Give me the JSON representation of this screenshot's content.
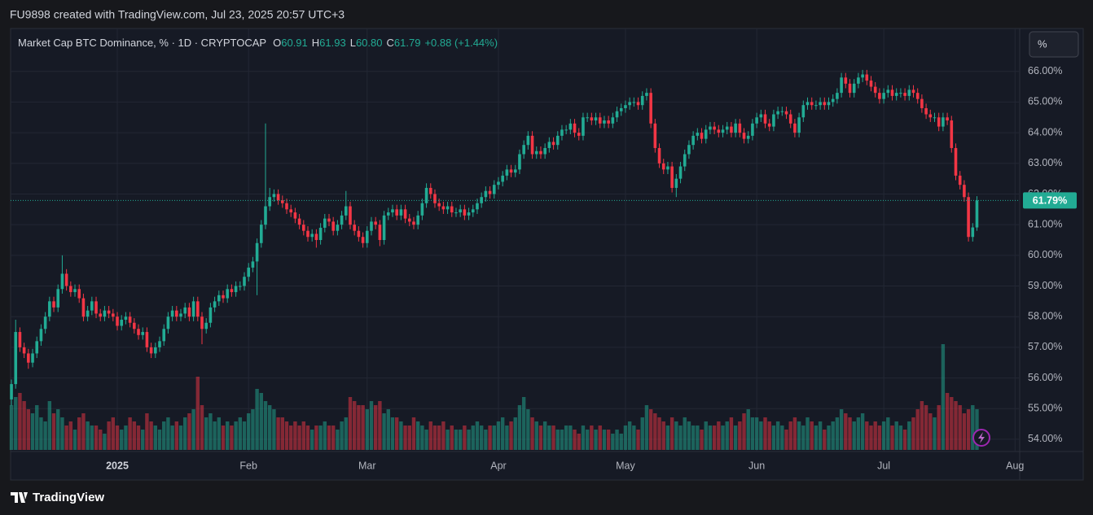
{
  "header": {
    "text": "FU9898 created with TradingView.com, Jul 23, 2025 20:57 UTC+3"
  },
  "chart_data": {
    "type": "candlestick",
    "title": "Market Cap BTC Dominance, % · 1D · CRYPTOCAP",
    "legend": [
      {
        "key": "O",
        "text": "60.91"
      },
      {
        "key": "H",
        "text": "61.93"
      },
      {
        "key": "L",
        "text": "60.80"
      },
      {
        "key": "C",
        "text": "61.79"
      }
    ],
    "change": "+0.88 (+1.44%)",
    "scale_button": "%",
    "last_price_label": "61.79%",
    "up_color": "#22ab94",
    "down_color": "#f23645",
    "grid": true,
    "xlim": [
      -25.2,
      213.1
    ],
    "xticks": [
      {
        "value": 0,
        "label": "2025"
      },
      {
        "value": 31,
        "label": "Feb"
      },
      {
        "value": 59,
        "label": "Mar"
      },
      {
        "value": 90,
        "label": "Apr"
      },
      {
        "value": 120,
        "label": "May"
      },
      {
        "value": 151,
        "label": "Jun"
      },
      {
        "value": 181,
        "label": "Jul"
      },
      {
        "value": 212,
        "label": "Aug"
      }
    ],
    "ylim": [
      53.6,
      67.4
    ],
    "yticks": [
      {
        "value": 54,
        "label": "54.00%"
      },
      {
        "value": 55,
        "label": "55.00%"
      },
      {
        "value": 56,
        "label": "56.00%"
      },
      {
        "value": 57,
        "label": "57.00%"
      },
      {
        "value": 58,
        "label": "58.00%"
      },
      {
        "value": 59,
        "label": "59.00%"
      },
      {
        "value": 60,
        "label": "60.00%"
      },
      {
        "value": 61,
        "label": "61.00%"
      },
      {
        "value": 62,
        "label": "62.00%"
      },
      {
        "value": 63,
        "label": "63.00%"
      },
      {
        "value": 64,
        "label": "64.00%"
      },
      {
        "value": 65,
        "label": "65.00%"
      },
      {
        "value": 66,
        "label": "66.00%"
      }
    ],
    "x": [
      -25,
      -24,
      -23,
      -22,
      -21,
      -20,
      -19,
      -18,
      -17,
      -16,
      -15,
      -14,
      -13,
      -12,
      -11,
      -10,
      -9,
      -8,
      -7,
      -6,
      -5,
      -4,
      -3,
      -2,
      -1,
      0,
      1,
      2,
      3,
      4,
      5,
      6,
      7,
      8,
      9,
      10,
      11,
      12,
      13,
      14,
      15,
      16,
      17,
      18,
      19,
      20,
      21,
      22,
      23,
      24,
      25,
      26,
      27,
      28,
      29,
      30,
      31,
      32,
      33,
      34,
      35,
      36,
      37,
      38,
      39,
      40,
      41,
      42,
      43,
      44,
      45,
      46,
      47,
      48,
      49,
      50,
      51,
      52,
      53,
      54,
      55,
      56,
      57,
      58,
      59,
      60,
      61,
      62,
      63,
      64,
      65,
      66,
      67,
      68,
      69,
      70,
      71,
      72,
      73,
      74,
      75,
      76,
      77,
      78,
      79,
      80,
      81,
      82,
      83,
      84,
      85,
      86,
      87,
      88,
      89,
      90,
      91,
      92,
      93,
      94,
      95,
      96,
      97,
      98,
      99,
      100,
      101,
      102,
      103,
      104,
      105,
      106,
      107,
      108,
      109,
      110,
      111,
      112,
      113,
      114,
      115,
      116,
      117,
      118,
      119,
      120,
      121,
      122,
      123,
      124,
      125,
      126,
      127,
      128,
      129,
      130,
      131,
      132,
      133,
      134,
      135,
      136,
      137,
      138,
      139,
      140,
      141,
      142,
      143,
      144,
      145,
      146,
      147,
      148,
      149,
      150,
      151,
      152,
      153,
      154,
      155,
      156,
      157,
      158,
      159,
      160,
      161,
      162,
      163,
      164,
      165,
      166,
      167,
      168,
      169,
      170,
      171,
      172,
      173,
      174,
      175,
      176,
      177,
      178,
      179,
      180,
      181,
      182,
      183,
      184,
      185,
      186,
      187,
      188,
      189,
      190,
      191,
      192,
      193,
      194,
      195,
      196,
      197,
      198,
      199,
      200,
      201,
      202,
      203
    ],
    "open": [
      55.3,
      55.8,
      57.5,
      57.0,
      56.8,
      56.5,
      56.8,
      57.2,
      57.6,
      58.0,
      58.5,
      58.3,
      58.9,
      59.4,
      59.0,
      58.8,
      58.9,
      58.6,
      58.0,
      58.2,
      58.5,
      58.1,
      58.0,
      58.2,
      58.1,
      58.0,
      57.7,
      57.9,
      58.0,
      57.8,
      57.6,
      57.4,
      57.5,
      57.0,
      56.8,
      57.0,
      57.2,
      57.6,
      58.0,
      58.2,
      58.0,
      58.1,
      58.3,
      58.0,
      58.5,
      58.0,
      57.6,
      57.8,
      58.3,
      58.5,
      58.7,
      58.6,
      58.9,
      58.8,
      59.0,
      59.0,
      59.3,
      59.6,
      59.8,
      60.4,
      61.0,
      61.6,
      61.9,
      62.0,
      61.8,
      61.7,
      61.5,
      61.4,
      61.2,
      61.0,
      60.8,
      60.6,
      60.7,
      60.5,
      60.9,
      61.2,
      61.1,
      60.8,
      61.0,
      61.3,
      61.6,
      61.0,
      60.8,
      60.6,
      60.4,
      60.8,
      61.1,
      61.0,
      60.5,
      61.3,
      61.4,
      61.5,
      61.3,
      61.5,
      61.2,
      61.1,
      61.0,
      61.3,
      61.7,
      62.2,
      62.0,
      61.7,
      61.6,
      61.5,
      61.6,
      61.4,
      61.4,
      61.5,
      61.3,
      61.4,
      61.5,
      61.7,
      61.9,
      62.1,
      62.0,
      62.3,
      62.4,
      62.6,
      62.8,
      62.7,
      62.8,
      63.3,
      63.6,
      63.9,
      63.3,
      63.4,
      63.3,
      63.5,
      63.7,
      63.6,
      63.9,
      64.1,
      64.1,
      64.3,
      64.0,
      63.9,
      64.5,
      64.5,
      64.4,
      64.5,
      64.3,
      64.4,
      64.3,
      64.5,
      64.7,
      64.8,
      64.9,
      65.0,
      65.0,
      64.9,
      65.2,
      65.3,
      64.3,
      63.5,
      63.0,
      62.8,
      62.9,
      62.2,
      62.5,
      62.9,
      63.3,
      63.6,
      63.9,
      64.0,
      63.8,
      64.1,
      64.2,
      64.1,
      64.0,
      64.1,
      64.2,
      64.0,
      64.3,
      64.0,
      63.8,
      63.9,
      64.3,
      64.5,
      64.6,
      64.3,
      64.2,
      64.6,
      64.7,
      64.7,
      64.6,
      64.3,
      64.0,
      64.5,
      64.9,
      65.0,
      64.9,
      64.9,
      65.0,
      64.9,
      65.0,
      65.1,
      65.3,
      65.8,
      65.6,
      65.3,
      65.6,
      65.8,
      65.9,
      65.7,
      65.5,
      65.3,
      65.1,
      65.3,
      65.4,
      65.2,
      65.3,
      65.3,
      65.2,
      65.4,
      65.3,
      65.1,
      64.8,
      64.6,
      64.5,
      64.5,
      64.2,
      64.5,
      64.4,
      63.5,
      62.6,
      62.3,
      61.9,
      60.6,
      60.91
    ],
    "high": [
      55.95,
      57.9,
      57.65,
      57.15,
      56.95,
      56.95,
      57.35,
      57.75,
      58.15,
      58.65,
      58.65,
      59.05,
      60.0,
      59.55,
      59.15,
      59.05,
      59.05,
      58.75,
      58.35,
      58.65,
      58.65,
      58.25,
      58.35,
      58.35,
      58.25,
      58.15,
      58.05,
      58.15,
      58.15,
      57.95,
      57.75,
      57.65,
      57.65,
      57.15,
      57.15,
      57.35,
      57.75,
      58.15,
      58.35,
      58.35,
      58.25,
      58.45,
      58.45,
      58.65,
      58.65,
      58.15,
      57.95,
      58.45,
      58.65,
      58.85,
      58.85,
      59.05,
      59.05,
      59.15,
      59.15,
      59.45,
      59.75,
      59.95,
      60.55,
      61.15,
      64.3,
      62.2,
      62.15,
      62.15,
      61.95,
      61.85,
      61.65,
      61.55,
      61.35,
      61.15,
      60.95,
      60.85,
      60.85,
      61.05,
      61.35,
      61.35,
      61.25,
      61.15,
      61.45,
      62.1,
      61.75,
      61.15,
      60.95,
      60.75,
      60.95,
      61.25,
      61.25,
      61.15,
      61.45,
      61.55,
      61.65,
      61.65,
      61.65,
      61.65,
      61.35,
      61.25,
      61.45,
      61.85,
      62.35,
      62.35,
      62.15,
      61.85,
      61.75,
      61.75,
      61.75,
      61.55,
      61.65,
      61.65,
      61.55,
      61.65,
      61.85,
      62.05,
      62.25,
      62.25,
      62.45,
      62.55,
      62.75,
      62.95,
      62.95,
      62.95,
      63.45,
      63.75,
      64.05,
      64.05,
      63.55,
      63.55,
      63.65,
      63.85,
      63.85,
      64.05,
      64.25,
      64.25,
      64.45,
      64.45,
      64.15,
      64.65,
      64.65,
      64.65,
      64.65,
      64.65,
      64.55,
      64.55,
      64.65,
      64.85,
      64.95,
      65.05,
      65.15,
      65.15,
      65.15,
      65.35,
      65.45,
      65.45,
      64.45,
      63.65,
      63.15,
      63.05,
      63.05,
      62.65,
      63.05,
      63.45,
      63.75,
      64.05,
      64.15,
      64.15,
      64.25,
      64.35,
      64.35,
      64.25,
      64.25,
      64.35,
      64.35,
      64.45,
      64.45,
      64.15,
      64.05,
      64.45,
      64.65,
      64.75,
      64.75,
      64.45,
      64.75,
      64.85,
      64.85,
      64.85,
      64.75,
      64.45,
      64.65,
      65.05,
      65.15,
      65.15,
      65.05,
      65.15,
      65.15,
      65.15,
      65.25,
      65.45,
      65.95,
      65.95,
      65.75,
      65.75,
      65.95,
      66.05,
      66.05,
      65.85,
      65.65,
      65.45,
      65.45,
      65.55,
      65.55,
      65.45,
      65.45,
      65.45,
      65.55,
      65.55,
      65.45,
      65.25,
      64.95,
      64.75,
      64.65,
      64.65,
      64.65,
      64.65,
      64.55,
      63.65,
      62.75,
      62.45,
      62.05,
      61.05,
      61.93
    ],
    "low": [
      55.1,
      55.65,
      56.85,
      56.65,
      56.3,
      56.35,
      56.65,
      57.05,
      57.45,
      57.85,
      58.15,
      58.15,
      58.75,
      58.85,
      58.65,
      58.65,
      58.45,
      57.85,
      57.85,
      58.05,
      57.95,
      57.85,
      57.85,
      57.95,
      57.85,
      57.55,
      57.55,
      57.75,
      57.65,
      57.45,
      57.25,
      57.25,
      56.85,
      56.65,
      56.65,
      56.85,
      57.05,
      57.45,
      57.85,
      57.85,
      57.85,
      57.95,
      57.85,
      57.85,
      57.85,
      57.1,
      57.45,
      57.65,
      58.15,
      58.35,
      58.45,
      58.45,
      58.65,
      58.65,
      58.85,
      58.85,
      59.15,
      59.45,
      58.7,
      60.25,
      60.85,
      61.45,
      61.75,
      61.65,
      61.55,
      61.35,
      61.25,
      61.05,
      60.85,
      60.65,
      60.45,
      60.45,
      60.25,
      60.35,
      60.75,
      60.95,
      60.65,
      60.65,
      60.85,
      61.15,
      60.85,
      60.65,
      60.45,
      60.25,
      60.25,
      60.65,
      60.85,
      60.3,
      60.35,
      61.15,
      61.25,
      61.15,
      61.15,
      61.05,
      60.95,
      60.85,
      60.85,
      61.15,
      61.55,
      61.85,
      61.55,
      61.45,
      61.35,
      61.35,
      61.25,
      61.25,
      61.25,
      61.15,
      61.15,
      61.25,
      61.35,
      61.55,
      61.75,
      61.85,
      61.85,
      62.15,
      62.25,
      62.45,
      62.55,
      62.55,
      62.65,
      63.15,
      63.45,
      63.15,
      63.15,
      63.15,
      63.15,
      63.35,
      63.45,
      63.45,
      63.75,
      63.95,
      63.95,
      63.85,
      63.75,
      63.75,
      64.35,
      64.25,
      64.25,
      64.15,
      64.15,
      64.15,
      64.15,
      64.35,
      64.55,
      64.65,
      64.75,
      64.85,
      64.75,
      64.75,
      65.05,
      64.15,
      63.35,
      62.85,
      62.65,
      62.65,
      62.05,
      61.9,
      62.35,
      62.75,
      63.15,
      63.45,
      63.75,
      63.65,
      63.65,
      63.95,
      63.95,
      63.85,
      63.85,
      63.95,
      63.85,
      63.85,
      63.85,
      63.65,
      63.65,
      63.75,
      64.15,
      64.35,
      64.15,
      64.05,
      64.05,
      64.45,
      64.55,
      64.45,
      64.15,
      63.85,
      63.85,
      64.35,
      64.75,
      64.75,
      64.75,
      64.75,
      64.75,
      64.75,
      64.85,
      64.95,
      65.15,
      65.45,
      65.15,
      65.15,
      65.45,
      65.65,
      65.55,
      65.35,
      65.15,
      64.95,
      64.95,
      65.15,
      65.05,
      65.05,
      65.15,
      65.05,
      65.05,
      65.15,
      64.95,
      64.65,
      64.45,
      64.35,
      64.35,
      64.05,
      64.05,
      64.25,
      63.35,
      62.45,
      62.15,
      61.75,
      60.45,
      60.45,
      60.8
    ],
    "close": [
      55.8,
      57.5,
      57.0,
      56.8,
      56.5,
      56.8,
      57.2,
      57.6,
      58.0,
      58.5,
      58.3,
      58.9,
      59.4,
      59.0,
      58.8,
      58.9,
      58.6,
      58.0,
      58.2,
      58.5,
      58.1,
      58.0,
      58.2,
      58.1,
      58.0,
      57.7,
      57.9,
      58.0,
      57.8,
      57.6,
      57.4,
      57.5,
      57.0,
      56.8,
      57.0,
      57.2,
      57.6,
      58.0,
      58.2,
      58.0,
      58.1,
      58.3,
      58.0,
      58.5,
      58.0,
      57.6,
      57.8,
      58.3,
      58.5,
      58.7,
      58.6,
      58.9,
      58.8,
      59.0,
      59.0,
      59.3,
      59.6,
      59.8,
      60.4,
      61.0,
      61.6,
      61.9,
      62.0,
      61.8,
      61.7,
      61.5,
      61.4,
      61.2,
      61.0,
      60.8,
      60.6,
      60.7,
      60.5,
      60.9,
      61.2,
      61.1,
      60.8,
      61.0,
      61.3,
      61.6,
      61.0,
      60.8,
      60.6,
      60.4,
      60.8,
      61.1,
      61.0,
      60.5,
      61.3,
      61.4,
      61.5,
      61.3,
      61.5,
      61.2,
      61.1,
      61.0,
      61.3,
      61.7,
      62.2,
      62.0,
      61.7,
      61.6,
      61.5,
      61.6,
      61.4,
      61.4,
      61.5,
      61.3,
      61.4,
      61.5,
      61.7,
      61.9,
      62.1,
      62.0,
      62.3,
      62.4,
      62.6,
      62.8,
      62.7,
      62.8,
      63.3,
      63.6,
      63.9,
      63.3,
      63.4,
      63.3,
      63.5,
      63.7,
      63.6,
      63.9,
      64.1,
      64.1,
      64.3,
      64.0,
      63.9,
      64.5,
      64.5,
      64.4,
      64.5,
      64.3,
      64.4,
      64.3,
      64.5,
      64.7,
      64.8,
      64.9,
      65.0,
      65.0,
      64.9,
      65.2,
      65.3,
      64.3,
      63.5,
      63.0,
      62.8,
      62.9,
      62.2,
      62.5,
      62.9,
      63.3,
      63.6,
      63.9,
      64.0,
      63.8,
      64.1,
      64.2,
      64.1,
      64.0,
      64.1,
      64.2,
      64.0,
      64.3,
      64.0,
      63.8,
      63.9,
      64.3,
      64.5,
      64.6,
      64.3,
      64.2,
      64.6,
      64.7,
      64.7,
      64.6,
      64.3,
      64.0,
      64.5,
      64.9,
      65.0,
      64.9,
      64.9,
      65.0,
      64.9,
      65.0,
      65.1,
      65.3,
      65.8,
      65.6,
      65.3,
      65.6,
      65.8,
      65.9,
      65.7,
      65.5,
      65.3,
      65.1,
      65.3,
      65.4,
      65.2,
      65.3,
      65.3,
      65.2,
      65.4,
      65.3,
      65.1,
      64.8,
      64.6,
      64.5,
      64.5,
      64.2,
      64.5,
      64.4,
      63.5,
      62.6,
      62.3,
      61.9,
      60.6,
      60.91,
      61.79
    ],
    "volume": [
      55,
      65,
      70,
      60,
      50,
      45,
      55,
      40,
      35,
      60,
      45,
      50,
      40,
      30,
      35,
      25,
      40,
      45,
      35,
      30,
      30,
      25,
      20,
      35,
      40,
      30,
      25,
      30,
      40,
      35,
      30,
      25,
      45,
      35,
      30,
      25,
      35,
      40,
      30,
      35,
      30,
      40,
      45,
      50,
      90,
      55,
      40,
      45,
      35,
      40,
      30,
      35,
      30,
      35,
      40,
      35,
      45,
      50,
      75,
      70,
      60,
      55,
      50,
      40,
      40,
      35,
      30,
      35,
      30,
      35,
      30,
      25,
      30,
      30,
      35,
      30,
      30,
      25,
      35,
      40,
      65,
      60,
      55,
      55,
      50,
      60,
      55,
      60,
      45,
      50,
      40,
      40,
      35,
      30,
      30,
      40,
      35,
      30,
      25,
      35,
      30,
      30,
      35,
      25,
      30,
      25,
      25,
      30,
      25,
      30,
      35,
      30,
      25,
      30,
      30,
      35,
      40,
      30,
      35,
      40,
      55,
      65,
      50,
      40,
      35,
      30,
      35,
      30,
      30,
      25,
      25,
      30,
      30,
      25,
      20,
      30,
      25,
      30,
      25,
      30,
      25,
      25,
      20,
      25,
      20,
      30,
      35,
      30,
      25,
      40,
      55,
      50,
      45,
      40,
      35,
      30,
      40,
      35,
      30,
      40,
      35,
      30,
      30,
      25,
      35,
      30,
      30,
      35,
      30,
      35,
      40,
      30,
      35,
      45,
      50,
      40,
      40,
      35,
      40,
      35,
      30,
      35,
      30,
      25,
      35,
      40,
      35,
      30,
      40,
      35,
      30,
      35,
      25,
      30,
      35,
      40,
      50,
      45,
      40,
      35,
      40,
      45,
      35,
      30,
      35,
      30,
      35,
      40,
      30,
      35,
      30,
      25,
      35,
      40,
      50,
      60,
      55,
      45,
      40,
      55,
      130,
      70,
      65,
      60,
      55,
      45,
      50,
      55,
      50
    ]
  },
  "footer": {
    "logo_text": "TradingView"
  }
}
